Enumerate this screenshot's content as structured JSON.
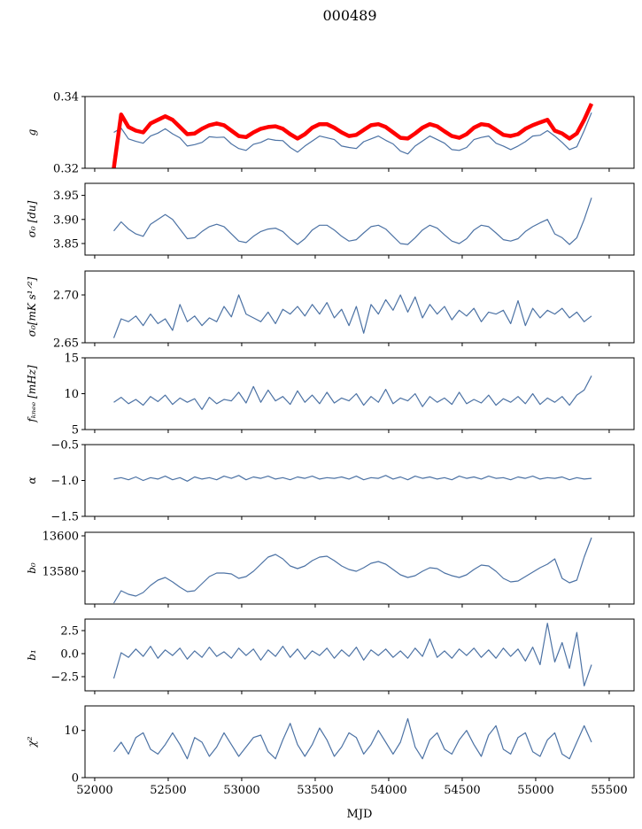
{
  "chart_data": {
    "type": "line",
    "title": "000489",
    "xlabel": "MJD",
    "xlim": [
      51934,
      55669
    ],
    "x_start": 52130,
    "x_step": 50,
    "xticks": [
      "52000",
      "52500",
      "53000",
      "53500",
      "54000",
      "54500",
      "55000",
      "55500"
    ],
    "xtick_values": [
      52000,
      52500,
      53000,
      53500,
      54000,
      54500,
      55000,
      55500
    ],
    "line_color": "#4c72a4",
    "highlight_color": "#ff0000",
    "panels": [
      {
        "ylabel": "g",
        "ylim": [
          0.32,
          0.34
        ],
        "yticks": [
          "0.32",
          "0.34"
        ],
        "ytick_values": [
          0.32,
          0.34
        ],
        "series": [
          {
            "name": "g",
            "color": "#4c72a4",
            "values": [
              0.33,
              0.3312,
              0.3282,
              0.3275,
              0.327,
              0.329,
              0.3298,
              0.331,
              0.3296,
              0.3285,
              0.3262,
              0.3266,
              0.3272,
              0.3288,
              0.3286,
              0.3287,
              0.3268,
              0.3255,
              0.325,
              0.3267,
              0.3272,
              0.3282,
              0.3278,
              0.3277,
              0.3258,
              0.3245,
              0.3262,
              0.3276,
              0.329,
              0.3285,
              0.328,
              0.3262,
              0.3258,
              0.3255,
              0.3274,
              0.3282,
              0.329,
              0.3278,
              0.3268,
              0.3248,
              0.324,
              0.3262,
              0.3276,
              0.329,
              0.328,
              0.327,
              0.3252,
              0.325,
              0.3258,
              0.328,
              0.3286,
              0.329,
              0.327,
              0.3262,
              0.3252,
              0.3262,
              0.3274,
              0.329,
              0.3292,
              0.3305,
              0.329,
              0.3272,
              0.3252,
              0.326,
              0.3305,
              0.3355
            ]
          },
          {
            "name": "g_model",
            "color": "#ff0000",
            "thick": true,
            "values": [
              0.32,
              0.335,
              0.3315,
              0.3305,
              0.33,
              0.3325,
              0.3335,
              0.3345,
              0.3335,
              0.3315,
              0.3295,
              0.3297,
              0.331,
              0.332,
              0.3325,
              0.332,
              0.3305,
              0.329,
              0.3287,
              0.33,
              0.331,
              0.3315,
              0.3317,
              0.331,
              0.3295,
              0.3283,
              0.3295,
              0.3313,
              0.3323,
              0.3323,
              0.3313,
              0.33,
              0.329,
              0.3293,
              0.3307,
              0.332,
              0.3323,
              0.3315,
              0.33,
              0.3285,
              0.3283,
              0.3297,
              0.3313,
              0.3323,
              0.3317,
              0.3303,
              0.329,
              0.3285,
              0.3295,
              0.3313,
              0.3323,
              0.332,
              0.3307,
              0.3293,
              0.329,
              0.3295,
              0.331,
              0.332,
              0.3328,
              0.3335,
              0.3305,
              0.3297,
              0.3283,
              0.3297,
              0.3335,
              0.338
            ]
          }
        ]
      },
      {
        "ylabel": "σ₀ [du]",
        "ylim": [
          3.826,
          3.975
        ],
        "yticks": [
          "3.85",
          "3.90",
          "3.95"
        ],
        "ytick_values": [
          3.85,
          3.9,
          3.95
        ],
        "series": [
          {
            "name": "sigma0_du",
            "values": [
              3.876,
              3.895,
              3.88,
              3.87,
              3.865,
              3.89,
              3.9,
              3.91,
              3.9,
              3.88,
              3.86,
              3.862,
              3.875,
              3.885,
              3.89,
              3.885,
              3.87,
              3.855,
              3.852,
              3.865,
              3.875,
              3.88,
              3.882,
              3.875,
              3.86,
              3.848,
              3.86,
              3.878,
              3.888,
              3.888,
              3.878,
              3.865,
              3.855,
              3.858,
              3.872,
              3.885,
              3.888,
              3.88,
              3.865,
              3.85,
              3.848,
              3.862,
              3.878,
              3.888,
              3.882,
              3.868,
              3.855,
              3.85,
              3.86,
              3.878,
              3.888,
              3.885,
              3.872,
              3.858,
              3.855,
              3.86,
              3.875,
              3.885,
              3.893,
              3.9,
              3.87,
              3.862,
              3.848,
              3.862,
              3.9,
              3.945
            ]
          }
        ]
      },
      {
        "ylabel": "σ₀[mK s¹ᐟ²]",
        "ylim": [
          2.65,
          2.725
        ],
        "yticks": [
          "2.65",
          "2.70"
        ],
        "ytick_values": [
          2.65,
          2.7
        ],
        "series": [
          {
            "name": "sigma0_mK",
            "values": [
              2.655,
              2.675,
              2.672,
              2.678,
              2.668,
              2.68,
              2.67,
              2.675,
              2.663,
              2.69,
              2.672,
              2.678,
              2.668,
              2.676,
              2.672,
              2.688,
              2.677,
              2.7,
              2.68,
              2.676,
              2.672,
              2.682,
              2.67,
              2.685,
              2.68,
              2.688,
              2.678,
              2.69,
              2.68,
              2.692,
              2.676,
              2.685,
              2.668,
              2.688,
              2.66,
              2.69,
              2.68,
              2.695,
              2.684,
              2.7,
              2.682,
              2.698,
              2.676,
              2.69,
              2.68,
              2.688,
              2.674,
              2.684,
              2.678,
              2.686,
              2.672,
              2.682,
              2.68,
              2.684,
              2.67,
              2.694,
              2.668,
              2.686,
              2.676,
              2.684,
              2.68,
              2.686,
              2.676,
              2.682,
              2.672,
              2.678
            ]
          }
        ]
      },
      {
        "ylabel": "fₖₙₑₑ [mHz]",
        "ylim": [
          5,
          15
        ],
        "yticks": [
          "5",
          "10",
          "15"
        ],
        "ytick_values": [
          5,
          10,
          15
        ],
        "series": [
          {
            "name": "fknee",
            "values": [
              8.8,
              9.5,
              8.6,
              9.2,
              8.4,
              9.6,
              8.9,
              9.8,
              8.5,
              9.4,
              8.8,
              9.3,
              7.8,
              9.5,
              8.6,
              9.2,
              9.0,
              10.2,
              8.7,
              11.0,
              8.8,
              10.5,
              9.0,
              9.6,
              8.5,
              10.4,
              8.8,
              9.8,
              8.6,
              10.2,
              8.7,
              9.4,
              9.0,
              10.0,
              8.4,
              9.6,
              8.8,
              10.6,
              8.6,
              9.4,
              9.0,
              10.0,
              8.2,
              9.6,
              8.8,
              9.4,
              8.5,
              10.2,
              8.6,
              9.2,
              8.7,
              9.8,
              8.4,
              9.3,
              8.8,
              9.6,
              8.6,
              10.0,
              8.5,
              9.4,
              8.8,
              9.6,
              8.4,
              9.8,
              10.5,
              12.5
            ]
          }
        ]
      },
      {
        "ylabel": "α",
        "ylim": [
          -1.5,
          -0.5
        ],
        "yticks": [
          "−1.5",
          "−1.0",
          "−0.5"
        ],
        "ytick_values": [
          -1.5,
          -1.0,
          -0.5
        ],
        "series": [
          {
            "name": "alpha",
            "values": [
              -0.98,
              -0.96,
              -0.99,
              -0.95,
              -1.0,
              -0.96,
              -0.98,
              -0.94,
              -0.99,
              -0.96,
              -1.01,
              -0.95,
              -0.98,
              -0.96,
              -0.99,
              -0.94,
              -0.97,
              -0.93,
              -0.99,
              -0.95,
              -0.97,
              -0.94,
              -0.98,
              -0.96,
              -0.99,
              -0.95,
              -0.97,
              -0.94,
              -0.98,
              -0.96,
              -0.97,
              -0.95,
              -0.98,
              -0.94,
              -0.99,
              -0.96,
              -0.97,
              -0.93,
              -0.98,
              -0.95,
              -0.99,
              -0.94,
              -0.97,
              -0.95,
              -0.98,
              -0.96,
              -0.99,
              -0.94,
              -0.97,
              -0.95,
              -0.98,
              -0.94,
              -0.97,
              -0.96,
              -0.99,
              -0.95,
              -0.97,
              -0.94,
              -0.98,
              -0.96,
              -0.97,
              -0.95,
              -0.99,
              -0.96,
              -0.98,
              -0.97
            ]
          }
        ]
      },
      {
        "ylabel": "b₀",
        "ylim": [
          13561.5,
          13602
        ],
        "yticks": [
          "13580",
          "13600"
        ],
        "ytick_values": [
          13580,
          13600
        ],
        "series": [
          {
            "name": "b0",
            "values": [
              13562,
              13569,
              13567,
              13566,
              13568,
              13572,
              13575,
              13576.5,
              13574,
              13571,
              13568.5,
              13569,
              13573,
              13577,
              13579,
              13579,
              13578.5,
              13576,
              13577,
              13580,
              13584,
              13588,
              13589.5,
              13587,
              13583,
              13581.5,
              13583,
              13586,
              13588,
              13588.5,
              13586,
              13583,
              13581,
              13580,
              13582,
              13584.5,
              13585.5,
              13584,
              13581,
              13578,
              13576.5,
              13577.5,
              13580,
              13582,
              13581.5,
              13579,
              13577.5,
              13576.5,
              13578,
              13581,
              13583.5,
              13583,
              13580,
              13576,
              13574,
              13574.5,
              13577,
              13579.5,
              13582,
              13584,
              13587,
              13576,
              13573.5,
              13575,
              13588,
              13599
            ]
          }
        ]
      },
      {
        "ylabel": "b₁",
        "ylim": [
          -4.04,
          3.75
        ],
        "yticks": [
          "−2.5",
          "0.0",
          "2.5"
        ],
        "ytick_values": [
          -2.5,
          0,
          2.5
        ],
        "series": [
          {
            "name": "b1",
            "values": [
              -2.7,
              0.1,
              -0.4,
              0.5,
              -0.3,
              0.8,
              -0.5,
              0.4,
              -0.2,
              0.6,
              -0.6,
              0.3,
              -0.4,
              0.7,
              -0.3,
              0.2,
              -0.5,
              0.6,
              -0.2,
              0.5,
              -0.7,
              0.4,
              -0.3,
              0.8,
              -0.4,
              0.5,
              -0.6,
              0.3,
              -0.2,
              0.6,
              -0.5,
              0.4,
              -0.3,
              0.7,
              -0.7,
              0.4,
              -0.2,
              0.5,
              -0.4,
              0.3,
              -0.5,
              0.6,
              -0.3,
              1.6,
              -0.4,
              0.3,
              -0.5,
              0.5,
              -0.2,
              0.6,
              -0.4,
              0.4,
              -0.5,
              0.6,
              -0.3,
              0.5,
              -0.8,
              0.7,
              -1.2,
              3.3,
              -0.9,
              1.2,
              -1.6,
              2.3,
              -3.5,
              -1.2
            ]
          }
        ]
      },
      {
        "ylabel": "χ²",
        "ylim": [
          0,
          15.2
        ],
        "yticks": [
          "0",
          "10"
        ],
        "ytick_values": [
          0,
          10
        ],
        "series": [
          {
            "name": "chi2",
            "values": [
              5.5,
              7.5,
              5.0,
              8.5,
              9.5,
              6.0,
              5.0,
              7.0,
              9.5,
              7.0,
              4.0,
              8.5,
              7.5,
              4.5,
              6.5,
              9.5,
              7.0,
              4.5,
              6.5,
              8.5,
              9.0,
              5.5,
              4.0,
              8.0,
              11.5,
              7.0,
              4.5,
              7.0,
              10.5,
              8.0,
              4.5,
              6.5,
              9.5,
              8.5,
              5.0,
              7.0,
              10.0,
              7.5,
              5.0,
              7.5,
              12.5,
              6.5,
              4.0,
              8.0,
              9.5,
              6.0,
              5.0,
              8.0,
              10.0,
              7.0,
              4.5,
              9.0,
              11.0,
              6.0,
              5.0,
              8.5,
              9.5,
              5.5,
              4.5,
              8.0,
              9.5,
              5.0,
              4.0,
              7.5,
              11.0,
              7.5
            ]
          }
        ]
      }
    ]
  }
}
